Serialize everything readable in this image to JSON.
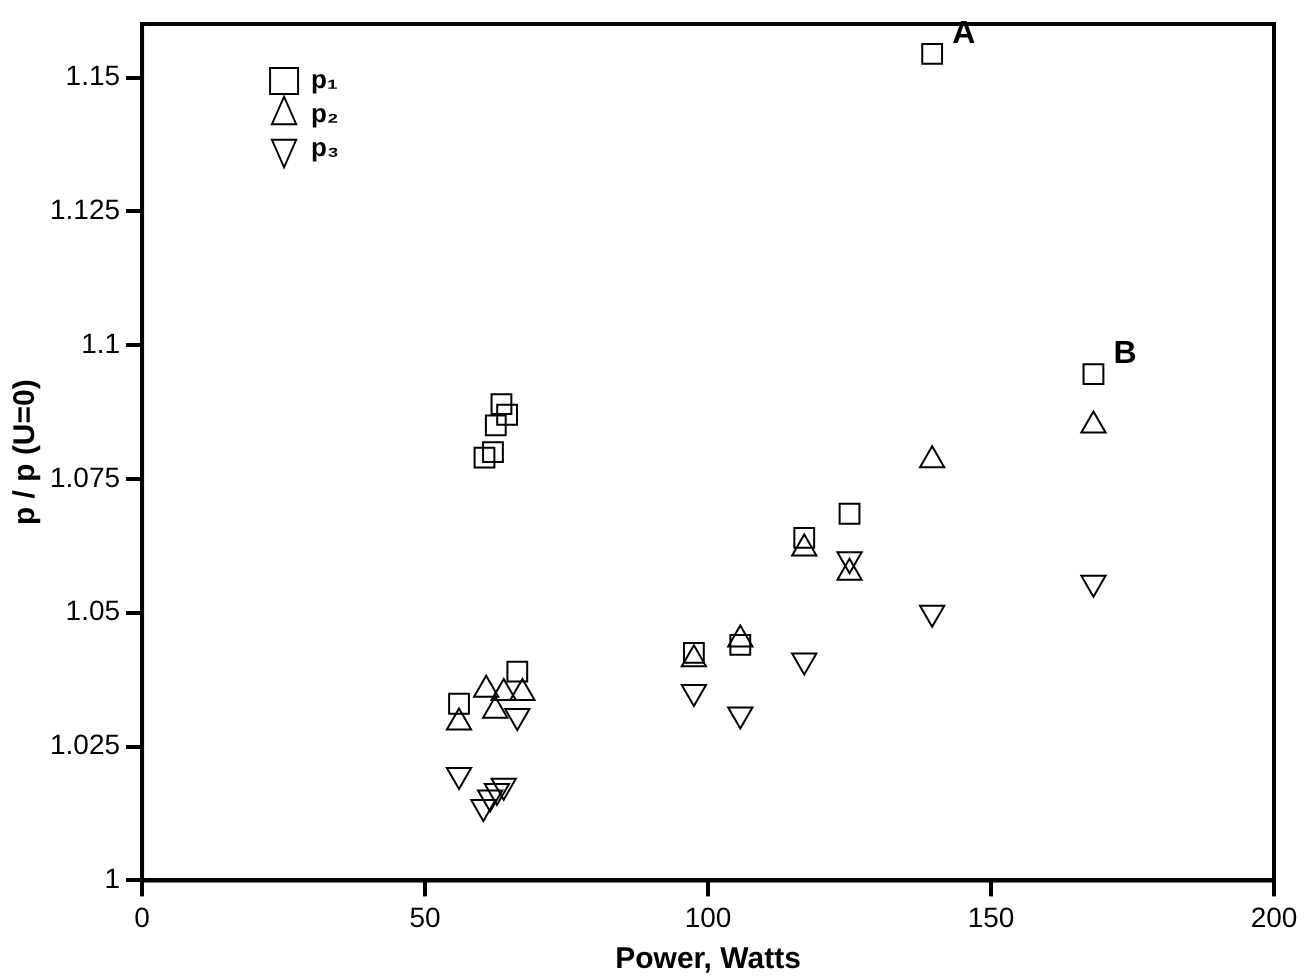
{
  "chart_data": {
    "type": "scatter",
    "xlabel": "Power, Watts",
    "ylabel": "p / p (U=0)",
    "xlim": [
      0,
      200
    ],
    "xticks": [
      0,
      50,
      100,
      150,
      200
    ],
    "ylim": [
      1,
      1.16
    ],
    "yticks": [
      1,
      1.025,
      1.05,
      1.075,
      1.1,
      1.125,
      1.15
    ],
    "grid": false,
    "legend": "top left",
    "series": [
      {
        "name": "p₁",
        "color": "#000000",
        "marker": "square",
        "x": [
          60.5,
          62,
          62.5,
          63.5,
          64.5,
          56,
          66.3,
          97.5,
          105.7,
          117,
          125,
          139.6,
          168.1
        ],
        "values": [
          1.079,
          1.08,
          1.085,
          1.089,
          1.087,
          1.033,
          1.039,
          1.0425,
          1.044,
          1.064,
          1.0685,
          1.1544,
          1.0946
        ]
      },
      {
        "name": "p₂",
        "color": "#000000",
        "marker": "triangle",
        "x": [
          56,
          60.8,
          62.4,
          63.9,
          67.2,
          97.5,
          105.7,
          117,
          125,
          139.6,
          168.1
        ],
        "values": [
          1.0295,
          1.0356,
          1.0317,
          1.035,
          1.035,
          1.0413,
          1.045,
          1.062,
          1.0575,
          1.0785,
          1.085
        ]
      },
      {
        "name": "p₃",
        "color": "#000000",
        "marker": "triangle_down",
        "x": [
          56,
          60.3,
          61.5,
          62.7,
          63.9,
          66.3,
          97.5,
          105.7,
          117,
          125,
          139.6,
          168.1
        ],
        "values": [
          1.0197,
          1.0137,
          1.0155,
          1.0167,
          1.0177,
          1.0307,
          1.0352,
          1.031,
          1.0411,
          1.06,
          1.05,
          1.0556
        ]
      }
    ],
    "annotations": [
      {
        "text": "A",
        "x": 139.6,
        "y": 1.1544
      },
      {
        "text": "B",
        "x": 168.1,
        "y": 1.0946
      }
    ]
  }
}
